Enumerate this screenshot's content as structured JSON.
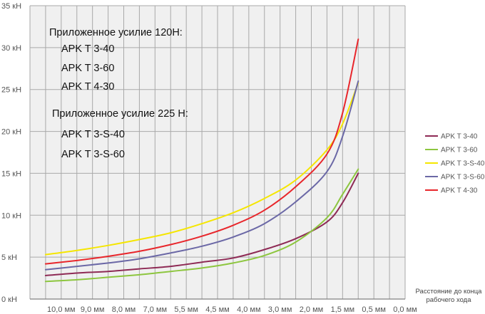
{
  "chart_data": {
    "type": "line",
    "xlabel": [
      "Расстояние до конца",
      "рабочего хода"
    ],
    "x_ticks": [
      "10,0 мм",
      "9,0 мм",
      "8,0 мм",
      "7,0 мм",
      "5,5 мм",
      "4,5 мм",
      "4,0 мм",
      "3,0 мм",
      "2,0 мм",
      "1,5 мм",
      "0,5 мм",
      "0,0 мм"
    ],
    "y_ticks": [
      "0 кН",
      "5 кН",
      "10 кН",
      "15 кН",
      "20 кН",
      "25 кН",
      "30 кН",
      "35 кН"
    ],
    "ylim": [
      0,
      35
    ],
    "grid": true,
    "legend_position": "right",
    "annotations": [
      "Приложенное усилие 120Н:",
      "APK T 3-40",
      "APK T 3-60",
      "APK T 4-30",
      "Приложенное усилие 225 Н:",
      "APK T 3-S-40",
      "APK T 3-S-60"
    ],
    "series": [
      {
        "name": "APK T 3-40",
        "color": "#8e2a55",
        "points": [
          [
            10.5,
            2.8
          ],
          [
            9.5,
            3.1
          ],
          [
            8.5,
            3.3
          ],
          [
            7.5,
            3.6
          ],
          [
            6.5,
            3.9
          ],
          [
            5.5,
            4.4
          ],
          [
            4.5,
            4.9
          ],
          [
            3.5,
            5.9
          ],
          [
            2.5,
            7.2
          ],
          [
            1.5,
            9.2
          ],
          [
            1.0,
            11.5
          ],
          [
            0.5,
            15.0
          ]
        ]
      },
      {
        "name": "APK T 3-60",
        "color": "#8dc63f",
        "points": [
          [
            10.5,
            2.1
          ],
          [
            9.5,
            2.3
          ],
          [
            8.5,
            2.6
          ],
          [
            7.5,
            2.9
          ],
          [
            6.5,
            3.3
          ],
          [
            5.5,
            3.7
          ],
          [
            4.5,
            4.3
          ],
          [
            3.5,
            5.2
          ],
          [
            2.5,
            6.8
          ],
          [
            1.5,
            9.7
          ],
          [
            1.0,
            12.5
          ],
          [
            0.5,
            15.5
          ]
        ]
      },
      {
        "name": "APK T 3-S-40",
        "color": "#f5e600",
        "points": [
          [
            10.5,
            5.3
          ],
          [
            9.5,
            5.8
          ],
          [
            8.5,
            6.4
          ],
          [
            7.5,
            7.1
          ],
          [
            6.5,
            7.9
          ],
          [
            5.5,
            9.0
          ],
          [
            4.5,
            10.3
          ],
          [
            3.5,
            12.0
          ],
          [
            2.5,
            14.2
          ],
          [
            1.5,
            17.8
          ],
          [
            1.0,
            20.9
          ],
          [
            0.5,
            25.8
          ]
        ]
      },
      {
        "name": "APK T 3-S-60",
        "color": "#6b68a6",
        "points": [
          [
            10.5,
            3.5
          ],
          [
            9.5,
            3.9
          ],
          [
            8.5,
            4.3
          ],
          [
            7.5,
            4.8
          ],
          [
            6.5,
            5.5
          ],
          [
            5.5,
            6.3
          ],
          [
            4.5,
            7.4
          ],
          [
            3.5,
            9.0
          ],
          [
            2.5,
            11.6
          ],
          [
            1.5,
            15.2
          ],
          [
            1.0,
            19.4
          ],
          [
            0.5,
            26.0
          ]
        ]
      },
      {
        "name": "APK T 4-30",
        "color": "#e8262b",
        "points": [
          [
            10.5,
            4.2
          ],
          [
            9.5,
            4.6
          ],
          [
            8.5,
            5.1
          ],
          [
            7.5,
            5.7
          ],
          [
            6.5,
            6.5
          ],
          [
            5.5,
            7.5
          ],
          [
            4.5,
            8.8
          ],
          [
            3.5,
            10.6
          ],
          [
            2.5,
            13.4
          ],
          [
            1.5,
            17.3
          ],
          [
            1.0,
            22.2
          ],
          [
            0.5,
            31.0
          ]
        ]
      }
    ]
  }
}
